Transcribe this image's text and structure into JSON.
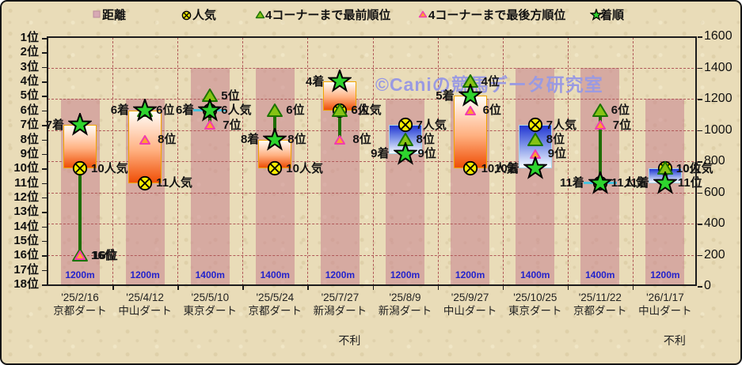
{
  "watermark": {
    "text": "©Caniの競馬データ研究室",
    "color": "#9a9ae2"
  },
  "legend": {
    "items": [
      {
        "label": "距離",
        "marker": "square-icon"
      },
      {
        "label": "人気",
        "marker": "circle-x-icon"
      },
      {
        "label": "4コーナーまで最前順位",
        "marker": "green-triangle-icon"
      },
      {
        "label": "4コーナーまで最後方順位",
        "marker": "pink-triangle-icon"
      },
      {
        "label": "着順",
        "marker": "star-icon"
      }
    ]
  },
  "axes": {
    "left_labels": [
      "1位",
      "2位",
      "3位",
      "4位",
      "5位",
      "6位",
      "7位",
      "8位",
      "9位",
      "10位",
      "11位",
      "12位",
      "13位",
      "14位",
      "15位",
      "16位",
      "17位",
      "18位"
    ],
    "right_labels": [
      "1600",
      "1400",
      "1200",
      "1000",
      "800",
      "600",
      "400",
      "200",
      "0"
    ]
  },
  "label_suffix": {
    "finish": "着",
    "popularity": "人気",
    "position": "位"
  },
  "colors": {
    "distance_bar": "rgba(198,124,140,0.52)",
    "up_bar_border": "#f0a400",
    "down_bar_border": "#a8d8ea",
    "equal_line": "#49c2dd",
    "hilo_line": "#1d6d05",
    "star_fill": "#2ed42e",
    "popularity_fill": "#f4ea00",
    "front_fill": "#85c314",
    "front_border": "#1b7300",
    "rear_fill": "#ffa030",
    "rear_border": "#f23cae",
    "distance_label": "#2222cc",
    "grid": "#b05858"
  },
  "chart_data": {
    "type": "combo",
    "left_axis": {
      "label_unit": "位",
      "range": [
        1,
        18
      ],
      "inverted_rank_scale": true
    },
    "right_axis": {
      "range": [
        0,
        1600
      ],
      "tick_step": 200
    },
    "series_legend": [
      "距離",
      "人気",
      "4コーナーまで最前順位",
      "4コーナーまで最後方順位",
      "着順"
    ],
    "races": [
      {
        "date": "'25/2/16",
        "track": "京都ダート",
        "distance_m": 1200,
        "distance_label": "1200m",
        "popularity": 10,
        "front": 16,
        "rear": 16,
        "finish": 7,
        "note": ""
      },
      {
        "date": "'25/4/12",
        "track": "中山ダート",
        "distance_m": 1200,
        "distance_label": "1200m",
        "popularity": 11,
        "front": 6,
        "rear": 8,
        "finish": 6,
        "note": ""
      },
      {
        "date": "'25/5/10",
        "track": "東京ダート",
        "distance_m": 1400,
        "distance_label": "1400m",
        "popularity": 6,
        "front": 5,
        "rear": 7,
        "finish": 6,
        "note": ""
      },
      {
        "date": "'25/5/24",
        "track": "京都ダート",
        "distance_m": 1400,
        "distance_label": "1400m",
        "popularity": 10,
        "front": 6,
        "rear": 8,
        "finish": 8,
        "note": ""
      },
      {
        "date": "'25/7/27",
        "track": "新潟ダート",
        "distance_m": 1200,
        "distance_label": "1200m",
        "popularity": 6,
        "front": 6,
        "rear": 8,
        "finish": 4,
        "note": "不利"
      },
      {
        "date": "'25/8/9",
        "track": "新潟ダート",
        "distance_m": 1200,
        "distance_label": "1200m",
        "popularity": 7,
        "front": 8,
        "rear": 9,
        "finish": 9,
        "note": ""
      },
      {
        "date": "'25/9/27",
        "track": "中山ダート",
        "distance_m": 1200,
        "distance_label": "1200m",
        "popularity": 10,
        "front": 4,
        "rear": 6,
        "finish": 5,
        "note": ""
      },
      {
        "date": "'25/10/25",
        "track": "東京ダート",
        "distance_m": 1400,
        "distance_label": "1400m",
        "popularity": 7,
        "front": 8,
        "rear": 9,
        "finish": 10,
        "note": ""
      },
      {
        "date": "'25/11/22",
        "track": "京都ダート",
        "distance_m": 1400,
        "distance_label": "1400m",
        "popularity": 11,
        "front": 6,
        "rear": 7,
        "finish": 11,
        "note": ""
      },
      {
        "date": "'26/1/17",
        "track": "中山ダート",
        "distance_m": 1200,
        "distance_label": "1200m",
        "popularity": 10,
        "front": 10,
        "rear": 11,
        "finish": 11,
        "note": "不利"
      }
    ]
  }
}
